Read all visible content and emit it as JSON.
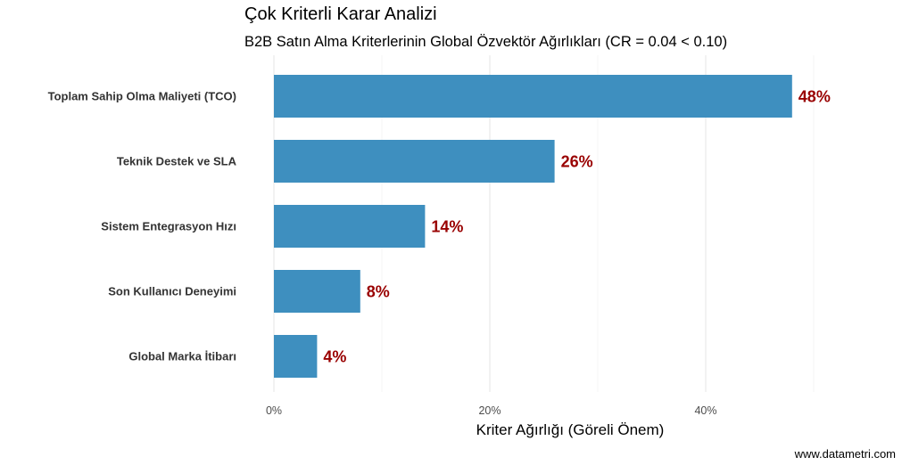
{
  "title": "Çok Kriterli Karar Analizi",
  "subtitle": "B2B Satın Alma Kriterlerinin Global Özvektör Ağırlıkları (CR = 0.04 < 0.10)",
  "caption": "www.datametri.com",
  "colors": {
    "bar": "#3e8fbf",
    "data_label": "#990000"
  },
  "chart_data": {
    "type": "bar",
    "orientation": "horizontal",
    "title": "Çok Kriterli Karar Analizi",
    "subtitle": "B2B Satın Alma Kriterlerinin Global Özvektör Ağırlıkları (CR = 0.04 < 0.10)",
    "xlabel": "Kriter Ağırlığı (Göreli Önem)",
    "ylabel": "",
    "categories": [
      "Toplam Sahip Olma Maliyeti (TCO)",
      "Teknik Destek ve SLA",
      "Sistem Entegrasyon Hızı",
      "Son Kullanıcı Deneyimi",
      "Global Marka İtibarı"
    ],
    "values": [
      0.48,
      0.26,
      0.14,
      0.08,
      0.04
    ],
    "data_labels": [
      "48%",
      "26%",
      "14%",
      "8%",
      "4%"
    ],
    "xlim": [
      0,
      0.5
    ],
    "xticks": [
      0,
      0.2,
      0.4
    ],
    "xtick_labels": [
      "0%",
      "20%",
      "40%"
    ],
    "grid": true,
    "legend": "none"
  }
}
